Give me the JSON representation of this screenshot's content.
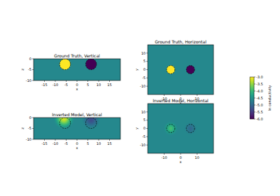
{
  "chart_data": [
    {
      "type": "heatmap",
      "title": "Ground Truth, Vertical",
      "x_label": "x",
      "y_label": "z",
      "xlim": [
        -20,
        20
      ],
      "ylim": [
        -10,
        0
      ],
      "xticks": [
        -15,
        -10,
        -5,
        0,
        5,
        10,
        15
      ],
      "yticks": [
        -10,
        -5,
        0
      ],
      "background": -4.6,
      "anomalies": [
        {
          "x": -5.5,
          "y": -2.5,
          "r": 2.5,
          "value": -3
        },
        {
          "x": 6.5,
          "y": -2.5,
          "r": 2.5,
          "value": -6
        }
      ],
      "outlines": [
        {
          "x": -5.5,
          "y": -2.5,
          "r": 2.5
        },
        {
          "x": 6.5,
          "y": -2.5,
          "r": 2.5
        }
      ]
    },
    {
      "type": "heatmap",
      "title": "Ground Truth, Horizontal",
      "x_label": "x",
      "y_label": "y",
      "xlim": [
        -20,
        20
      ],
      "ylim": [
        -15,
        15
      ],
      "xticks": [
        -10,
        0,
        10
      ],
      "yticks": [
        -10,
        -5,
        0,
        5,
        10
      ],
      "background": -4.6,
      "anomalies": [
        {
          "x": -6,
          "y": 0,
          "r": 2.5,
          "value": -3
        },
        {
          "x": 6,
          "y": 0,
          "r": 2.5,
          "value": -6
        }
      ],
      "outlines": [
        {
          "x": -6,
          "y": 0,
          "r": 2.5
        },
        {
          "x": 6,
          "y": 0,
          "r": 2.5
        }
      ]
    },
    {
      "type": "heatmap",
      "title": "Inverted Model, Vertical",
      "x_label": "x",
      "y_label": "z",
      "xlim": [
        -20,
        20
      ],
      "ylim": [
        -10,
        0
      ],
      "xticks": [
        -15,
        -10,
        -5,
        0,
        5,
        10,
        15
      ],
      "yticks": [
        -10,
        -5,
        0
      ],
      "background": -4.6,
      "blobs": [
        {
          "x": -6,
          "y": -0.5,
          "r": 5,
          "value": -3.2
        },
        {
          "x": 6.5,
          "y": -1,
          "r": 4.5,
          "value": -5.3
        }
      ],
      "outlines": [
        {
          "x": -5.5,
          "y": -2.5,
          "r": 2.5
        },
        {
          "x": 6.5,
          "y": -2.5,
          "r": 2.5
        }
      ]
    },
    {
      "type": "heatmap",
      "title": "Inverted Model, Horizontal",
      "x_label": "x",
      "y_label": "y",
      "xlim": [
        -20,
        20
      ],
      "ylim": [
        -15,
        15
      ],
      "xticks": [
        -10,
        0,
        10
      ],
      "yticks": [
        -10,
        -5,
        0,
        5,
        10
      ],
      "background": -4.6,
      "blobs": [
        {
          "x": -6,
          "y": 0,
          "r": 4.5,
          "value": -3.9
        },
        {
          "x": 6,
          "y": 0,
          "r": 4,
          "value": -5
        }
      ],
      "outlines": [
        {
          "x": -6,
          "y": 0,
          "r": 2.5
        },
        {
          "x": 6,
          "y": 0,
          "r": 2.5
        }
      ]
    }
  ],
  "colorbar": {
    "label": "ln conductivity",
    "range": [
      -6,
      -3
    ],
    "ticks": [
      {
        "value": -3,
        "label": "-3.0"
      },
      {
        "value": -3.5,
        "label": "-3.5"
      },
      {
        "value": -4,
        "label": "-4.0"
      },
      {
        "value": -4.5,
        "label": "-4.5"
      },
      {
        "value": -5,
        "label": "-5.0"
      },
      {
        "value": -5.5,
        "label": "-5.5"
      },
      {
        "value": -6,
        "label": "-6.0"
      }
    ]
  }
}
